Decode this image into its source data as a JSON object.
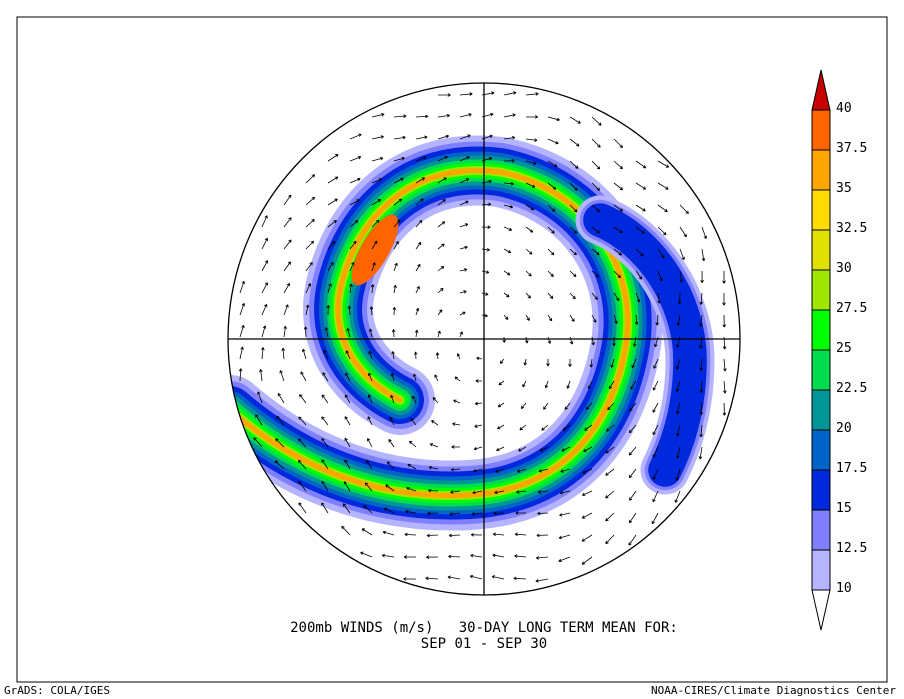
{
  "title": {
    "line1": "200mb WINDS (m/s)   30-DAY LONG TERM MEAN FOR:",
    "line2": "SEP 01 - SEP 30"
  },
  "footer": {
    "left": "GrADS: COLA/IGES",
    "right": "NOAA-CIRES/Climate Diagnostics Center"
  },
  "projection": "north-polar-stereographic",
  "colorbar": {
    "levels": [
      "10",
      "12.5",
      "15",
      "17.5",
      "20",
      "22.5",
      "25",
      "27.5",
      "30",
      "32.5",
      "35",
      "37.5",
      "40"
    ],
    "colors": [
      "#ffffff",
      "#b4b4ff",
      "#8080ff",
      "#0028dc",
      "#0064c8",
      "#009696",
      "#00dc50",
      "#00ff00",
      "#a0e600",
      "#e1e100",
      "#ffdc00",
      "#ffa500",
      "#ff6400",
      "#c80000"
    ]
  }
}
